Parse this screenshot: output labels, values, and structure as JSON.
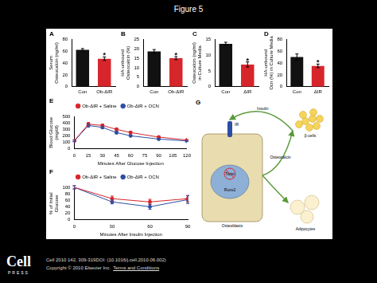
{
  "header": {
    "title": "Figure 5"
  },
  "chart_data": [
    {
      "label": "A",
      "type": "bar",
      "categories": [
        "Con",
        "Ob-ΔIR"
      ],
      "values": [
        62,
        47
      ],
      "errors": [
        2,
        3
      ],
      "colors": [
        "#111111",
        "#d7262b"
      ],
      "ylabel": [
        "Serum",
        "Osteocalcin (ng/ml)"
      ],
      "ylim": [
        0,
        80
      ],
      "yticks": [
        0,
        20,
        40,
        60,
        80
      ],
      "annotations": [
        {
          "at": "Ob-ΔIR",
          "text": "*"
        }
      ],
      "grid": false
    },
    {
      "label": "B",
      "type": "bar",
      "categories": [
        "Con",
        "Ob-ΔIR"
      ],
      "values": [
        18.5,
        15
      ],
      "errors": [
        1,
        0.8
      ],
      "colors": [
        "#111111",
        "#d7262b"
      ],
      "ylabel": [
        "HA-unbound",
        "Osteocalcin (%)"
      ],
      "ylim": [
        0,
        25
      ],
      "yticks": [
        0,
        5,
        10,
        15,
        20,
        25
      ],
      "annotations": [
        {
          "at": "Ob-ΔIR",
          "text": "*"
        }
      ],
      "grid": false
    },
    {
      "label": "C",
      "type": "bar",
      "categories": [
        "Con",
        "ΔIR"
      ],
      "values": [
        13.5,
        7
      ],
      "errors": [
        0.5,
        0.8
      ],
      "colors": [
        "#111111",
        "#d7262b"
      ],
      "ylabel": [
        "Osteocalcin (ng/ml)",
        "in Culture Media"
      ],
      "ylim": [
        0,
        15
      ],
      "yticks": [
        0,
        5,
        10,
        15
      ],
      "annotations": [
        {
          "at": "ΔIR",
          "text": "*"
        }
      ],
      "grid": false
    },
    {
      "label": "D",
      "type": "bar",
      "categories": [
        "Con",
        "ΔIR"
      ],
      "values": [
        50,
        35
      ],
      "errors": [
        5,
        3
      ],
      "colors": [
        "#111111",
        "#d7262b"
      ],
      "ylabel": [
        "HA-unbound",
        "Ocn (%) in Culture Media"
      ],
      "ylim": [
        0,
        80
      ],
      "yticks": [
        0,
        20,
        40,
        60,
        80
      ],
      "annotations": [
        {
          "at": "ΔIR",
          "text": "*"
        }
      ],
      "grid": false
    },
    {
      "label": "E",
      "type": "line",
      "x": [
        0,
        15,
        30,
        45,
        60,
        90,
        120
      ],
      "xlim": [
        0,
        120
      ],
      "xticks": [
        0,
        15,
        30,
        45,
        60,
        75,
        90,
        105,
        120
      ],
      "xlabel": "Minutes After Glucose Injection",
      "ylabel": [
        "Blood Glucose",
        "(mg/dl)"
      ],
      "ylim": [
        0,
        500
      ],
      "yticks": [
        0,
        100,
        200,
        300,
        400,
        500
      ],
      "legend": "top",
      "grid": false,
      "series": [
        {
          "name": "Ob-ΔIR + Saline",
          "color": "#d7262b",
          "marker": "circle",
          "values": [
            125,
            380,
            360,
            300,
            250,
            180,
            135
          ],
          "errors": [
            15,
            25,
            20,
            20,
            20,
            15,
            10
          ]
        },
        {
          "name": "Ob-ΔIR + OCN",
          "color": "#2c4ea3",
          "marker": "circle",
          "values": [
            120,
            360,
            330,
            250,
            200,
            150,
            120
          ],
          "errors": [
            10,
            25,
            20,
            20,
            15,
            10,
            10
          ]
        }
      ]
    },
    {
      "label": "F",
      "type": "line",
      "x": [
        0,
        30,
        60,
        90
      ],
      "xlim": [
        0,
        90
      ],
      "xticks": [
        0,
        30,
        60,
        90
      ],
      "xlabel": "Minutes After Insulin Injection",
      "ylabel": [
        "% of Initial",
        "Glucose"
      ],
      "ylim": [
        0,
        100
      ],
      "yticks": [
        0,
        20,
        40,
        60,
        80,
        100
      ],
      "legend": "top",
      "grid": false,
      "series": [
        {
          "name": "Ob-ΔIR + Saline",
          "color": "#d7262b",
          "marker": "circle",
          "values": [
            100,
            65,
            55,
            65
          ],
          "errors": [
            5,
            8,
            8,
            10
          ]
        },
        {
          "name": "Ob-ΔIR + OCN",
          "color": "#2c4ea3",
          "marker": "circle",
          "values": [
            100,
            55,
            40,
            62
          ],
          "errors": [
            5,
            6,
            8,
            12
          ]
        }
      ]
    }
  ],
  "diagram": {
    "label": "G",
    "nodes": [
      "Osteoblasts",
      "IR",
      "Twist",
      "Runx2",
      "β-cells",
      "Adipocytes"
    ],
    "arrows": [
      {
        "from": "β-cells",
        "to": "IR",
        "label": "Insulin"
      },
      {
        "from": "Osteoblasts",
        "to": "β-cells",
        "label": "Osteocalcin"
      },
      {
        "from": "Osteoblasts",
        "to": "Adipocytes"
      }
    ]
  },
  "footer": {
    "logo": [
      "Cell",
      "PRESS"
    ],
    "citation": "Cell 2010 142, 309-319DOI: (10.1016/j.cell.2010.06.002)",
    "copyright": "Copyright © 2010 Elsevier Inc.",
    "link": "Terms and Conditions"
  }
}
